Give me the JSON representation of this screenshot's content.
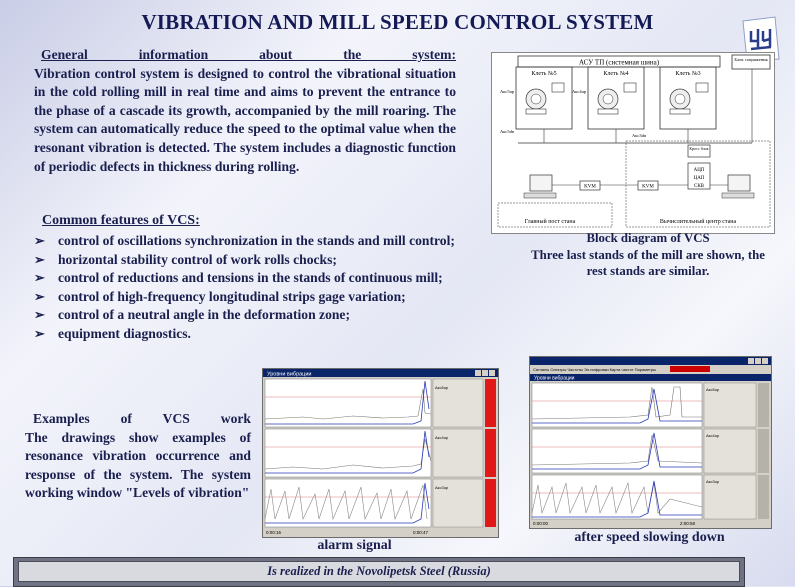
{
  "title": "VIBRATION AND MILL SPEED CONTROL SYSTEM",
  "logo": {
    "text": "ИЧМ",
    "icon": "institute-logo"
  },
  "intro": {
    "heading": "General information about the system:",
    "body": "Vibration control system is designed to control the vibrational situation in the cold rolling mill in real time and aims to prevent the entrance to the phase of a cascade its growth, accompanied by the mill roaring. The system can automatically reduce the speed to the optimal value when the resonant vibration is detected. The system includes a diagnostic function of periodic defects in thickness during rolling."
  },
  "features": {
    "heading": "Common features of VCS:",
    "marker": "➢",
    "items": [
      "control of oscillations synchronization in the stands and mill control;",
      "horizontal stability control of work rolls chocks;",
      "control of reductions and tensions in the stands of continuous mill;",
      "control of high-frequency longitudinal strips gage variation;",
      "control of a neutral angle in the deformation zone;",
      "equipment diagnostics."
    ]
  },
  "examples": {
    "heading": "Examples of VCS work",
    "body": "The drawings show examples of resonance vibration occurrence and response of the system. The system working window \"Levels of vibration\""
  },
  "diagram": {
    "top_bus": "АСУ ТП (системная шина)",
    "side_box": "Блок сопряжения",
    "stands": [
      "Клеть №5",
      "Клеть №4",
      "Клеть №3"
    ],
    "sensor_labels": [
      "Акс5up",
      "Акс5dn",
      "Акс4up",
      "Акс4dn",
      "Акс3up",
      "Акс3dn",
      "ПЭЗ"
    ],
    "kvm": [
      "KVM",
      "KVM"
    ],
    "cross_block": "Кросс блок",
    "adc": [
      "АЦП",
      "ЦАП",
      "СКВ"
    ],
    "main_post": "Главный пост стана",
    "computing_center": "Вычислительный центр стана"
  },
  "caption_block": {
    "line1": "Block diagram of VCS",
    "line2": "Three last stands of the mill are shown, the rest stands are similar."
  },
  "screens": {
    "left": {
      "title": "Уровни вибрации",
      "channels": [
        "Акс5up",
        "Акс4up",
        "Акс3up"
      ],
      "status_left": "0:00:16",
      "status_right": "0:00:47"
    },
    "right": {
      "title": "Уровни вибрации",
      "menu": "Сигналы  Спектры  Частоты  Эл.нифровки  Карта частот  Параметры",
      "channels": [
        "Акс5up",
        "Акс4up",
        "Акс3up"
      ],
      "status_left": "0:00:00",
      "status_right": "2:00:58"
    }
  },
  "captions": {
    "alarm": "alarm signal",
    "after": "after speed slowing down"
  },
  "footer": "Is realized in the Novolipetsk Steel (Russia)"
}
